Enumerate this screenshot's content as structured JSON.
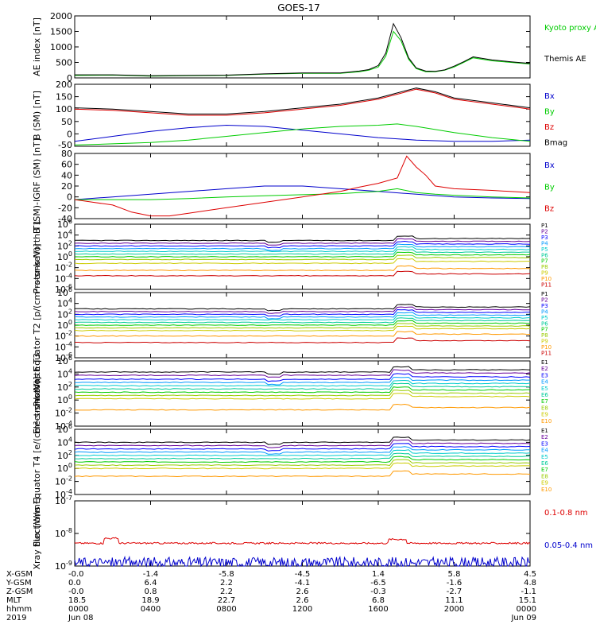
{
  "figure": {
    "title": "GOES-17"
  },
  "colors": {
    "black": "#000000",
    "green": "#00cc00",
    "red": "#dd0000",
    "blue": "#0000cc",
    "p_colors": [
      "#000000",
      "#660099",
      "#0000ff",
      "#0099ff",
      "#00cccc",
      "#00cc99",
      "#00cc00",
      "#99cc00",
      "#cccc00",
      "#ff9900",
      "#cc0000"
    ]
  },
  "chart_data": [
    {
      "type": "line",
      "panel": "ae",
      "ylabel": "AE index [nT]",
      "ylim": [
        0,
        2000
      ],
      "yticks": [
        "0",
        "500",
        "1000",
        "1500",
        "2000"
      ],
      "series": [
        {
          "name": "Kyoto proxy AE",
          "color": "#00cc00",
          "x": [
            0,
            2,
            4,
            6,
            8,
            10,
            12,
            14,
            15,
            15.5,
            16,
            16.4,
            16.8,
            17.2,
            17.6,
            18,
            18.5,
            19,
            19.5,
            20,
            20.5,
            21,
            22,
            23,
            24
          ],
          "y": [
            80,
            90,
            60,
            70,
            80,
            120,
            150,
            150,
            200,
            250,
            350,
            700,
            1500,
            1200,
            600,
            300,
            200,
            200,
            250,
            350,
            500,
            650,
            550,
            500,
            450
          ]
        },
        {
          "name": "Themis AE",
          "color": "#000000",
          "x": [
            0,
            2,
            4,
            6,
            8,
            10,
            12,
            14,
            15,
            15.5,
            16,
            16.4,
            16.8,
            17.2,
            17.6,
            18,
            18.5,
            19,
            19.5,
            20,
            20.5,
            21,
            22,
            23,
            24
          ],
          "y": [
            100,
            100,
            70,
            80,
            90,
            130,
            160,
            160,
            220,
            270,
            400,
            800,
            1750,
            1300,
            650,
            320,
            220,
            210,
            260,
            380,
            520,
            680,
            580,
            520,
            470
          ]
        }
      ],
      "legend": [
        "Kyoto proxy AE",
        "Themis AE"
      ]
    },
    {
      "type": "line",
      "panel": "bsm",
      "ylabel": "B (SM) [nT]",
      "ylim": [
        -50,
        200
      ],
      "yticks": [
        "0",
        "50",
        "100",
        "150",
        "200"
      ],
      "extra_tick": "-50",
      "series": [
        {
          "name": "Bx",
          "color": "#0000cc",
          "x": [
            0,
            2,
            4,
            6,
            8,
            10,
            12,
            14,
            16,
            18,
            20,
            22,
            24
          ],
          "y": [
            -30,
            -10,
            10,
            25,
            35,
            30,
            15,
            0,
            -15,
            -25,
            -30,
            -30,
            -25
          ]
        },
        {
          "name": "By",
          "color": "#00cc00",
          "x": [
            0,
            2,
            4,
            6,
            8,
            10,
            12,
            14,
            16,
            17,
            18,
            20,
            22,
            24
          ],
          "y": [
            -45,
            -40,
            -35,
            -25,
            -10,
            5,
            20,
            30,
            35,
            40,
            30,
            5,
            -15,
            -30
          ]
        },
        {
          "name": "Bz",
          "color": "#dd0000",
          "x": [
            0,
            2,
            4,
            6,
            8,
            10,
            12,
            14,
            16,
            17,
            18,
            19,
            20,
            22,
            24
          ],
          "y": [
            100,
            95,
            85,
            75,
            75,
            85,
            100,
            115,
            140,
            160,
            180,
            165,
            140,
            120,
            100
          ]
        },
        {
          "name": "Bmag",
          "color": "#000000",
          "x": [
            0,
            2,
            4,
            6,
            8,
            10,
            12,
            14,
            16,
            17,
            18,
            19,
            20,
            22,
            24
          ],
          "y": [
            105,
            100,
            90,
            80,
            80,
            90,
            105,
            120,
            145,
            165,
            185,
            170,
            145,
            125,
            105
          ]
        }
      ],
      "legend": [
        "Bx",
        "By",
        "Bz",
        "Bmag"
      ]
    },
    {
      "type": "line",
      "panel": "bigrf",
      "ylabel": "B (SM)-IGRF (SM) [nT]",
      "ylim": [
        -40,
        80
      ],
      "yticks": [
        "-40",
        "-20",
        "0",
        "20",
        "40",
        "60",
        "80"
      ],
      "series": [
        {
          "name": "Bx",
          "color": "#0000cc",
          "x": [
            0,
            2,
            4,
            6,
            8,
            10,
            12,
            14,
            16,
            18,
            20,
            22,
            24
          ],
          "y": [
            -5,
            0,
            5,
            10,
            15,
            20,
            20,
            15,
            10,
            5,
            0,
            -2,
            -3
          ]
        },
        {
          "name": "By",
          "color": "#00cc00",
          "x": [
            0,
            2,
            4,
            6,
            8,
            10,
            12,
            14,
            16,
            17,
            18,
            19,
            20,
            22,
            24
          ],
          "y": [
            -5,
            -5,
            -5,
            -3,
            0,
            2,
            4,
            6,
            10,
            15,
            8,
            5,
            3,
            0,
            -2
          ]
        },
        {
          "name": "Bz",
          "color": "#dd0000",
          "x": [
            0,
            2,
            3,
            4,
            5,
            6,
            8,
            10,
            12,
            14,
            15,
            16,
            17,
            17.5,
            18,
            18.5,
            19,
            20,
            22,
            24
          ],
          "y": [
            -5,
            -15,
            -28,
            -35,
            -35,
            -30,
            -20,
            -10,
            0,
            10,
            18,
            25,
            35,
            75,
            55,
            40,
            20,
            15,
            12,
            8
          ]
        }
      ],
      "legend": [
        "Bx",
        "By",
        "Bz"
      ]
    },
    {
      "type": "line",
      "panel": "pnorth",
      "ylabel": "Protons North T1",
      "ylog": [
        -6,
        6
      ],
      "yticks": [
        "10^-6",
        "10^-4",
        "10^-2",
        "10^0",
        "10^2",
        "10^4",
        "10^6"
      ],
      "channels": [
        "P1",
        "P2",
        "P3",
        "P4",
        "P5",
        "P6",
        "P7",
        "P8",
        "P9",
        "P10",
        "P11"
      ],
      "base_levels": [
        3.0,
        2.5,
        2.0,
        1.5,
        1.0,
        0.5,
        0.0,
        -0.5,
        -1.2,
        -2.5,
        -3.5
      ],
      "event_x": 16.8
    },
    {
      "type": "line",
      "panel": "pequator",
      "ylabel": "Protons Equator T2 [p/(cm²-s-sr-keV)]",
      "ylog": [
        -6,
        6
      ],
      "yticks": [
        "10^-6",
        "10^-4",
        "10^-2",
        "10^0",
        "10^2",
        "10^4",
        "10^6"
      ],
      "channels": [
        "P1",
        "P2",
        "P3",
        "P4",
        "P5",
        "P6",
        "P7",
        "P8",
        "P9",
        "P10",
        "P11"
      ],
      "base_levels": [
        3.0,
        2.5,
        2.0,
        1.5,
        1.0,
        0.5,
        0.0,
        -0.5,
        -1.0,
        -2.0,
        -3.2
      ],
      "event_x": 16.8
    },
    {
      "type": "line",
      "panel": "enorth",
      "ylabel": "Electrons North T3",
      "ylog": [
        -4,
        6
      ],
      "yticks": [
        "10^-4",
        "10^-2",
        "10^0",
        "10^2",
        "10^4",
        "10^6"
      ],
      "channels": [
        "E1",
        "E2",
        "E3",
        "E4",
        "E5",
        "E6",
        "E7",
        "E8",
        "E9",
        "E10"
      ],
      "base_levels": [
        4.3,
        3.8,
        3.2,
        2.7,
        2.2,
        1.7,
        1.2,
        0.7,
        0.2,
        -1.5
      ],
      "event_x": 16.6
    },
    {
      "type": "line",
      "panel": "eequator",
      "ylabel": "Electrons Equator T4 [e/(cm²-s-sr-keV)]",
      "ylog": [
        -4,
        6
      ],
      "yticks": [
        "10^-4",
        "10^-2",
        "10^0",
        "10^2",
        "10^4",
        "10^6"
      ],
      "channels": [
        "E1",
        "E2",
        "E3",
        "E4",
        "E5",
        "E6",
        "E7",
        "E8",
        "E9",
        "E10"
      ],
      "base_levels": [
        4.0,
        3.5,
        3.0,
        2.5,
        2.0,
        1.5,
        1.0,
        0.5,
        0.0,
        -1.2
      ],
      "event_x": 16.6
    },
    {
      "type": "line",
      "panel": "xray",
      "ylabel": "Xray flux [W/m²]",
      "ylog": [
        -9,
        -7
      ],
      "yticks": [
        "10^-9",
        "10^-8",
        "10^-7"
      ],
      "series": [
        {
          "name": "0.1-0.8 nm",
          "color": "#dd0000",
          "level": -8.3
        },
        {
          "name": "0.05-0.4 nm",
          "color": "#0000cc",
          "level": -8.9
        }
      ],
      "legend": [
        "0.1-0.8 nm",
        "0.05-0.4 nm"
      ]
    }
  ],
  "xaxis": {
    "ticks": [
      0,
      4,
      8,
      12,
      16,
      20,
      24
    ],
    "rows": [
      {
        "label": "X-GSM",
        "values": [
          "-0.0",
          "-1.4",
          "-5.8",
          "-4.5",
          "1.4",
          "5.8",
          "4.5"
        ]
      },
      {
        "label": "Y-GSM",
        "values": [
          "0.0",
          "6.4",
          "2.2",
          "-4.1",
          "-6.5",
          "-1.6",
          "4.8"
        ]
      },
      {
        "label": "Z-GSM",
        "values": [
          "-0.0",
          "0.8",
          "2.2",
          "2.6",
          "-0.3",
          "-2.7",
          "-1.1"
        ]
      },
      {
        "label": "MLT",
        "values": [
          "18.5",
          "18.9",
          "22.7",
          "2.6",
          "6.8",
          "11.1",
          "15.1"
        ]
      },
      {
        "label": "hhmm",
        "values": [
          "0000",
          "0400",
          "0800",
          "1200",
          "1600",
          "2000",
          "0000"
        ]
      },
      {
        "label": "2019",
        "values": [
          "Jun 08",
          "",
          "",
          "",
          "",
          "",
          "Jun 09"
        ]
      }
    ]
  }
}
